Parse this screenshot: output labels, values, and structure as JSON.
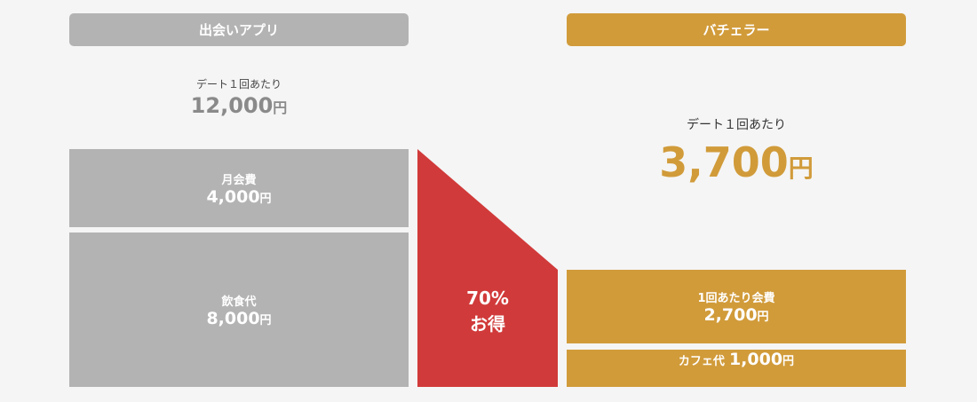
{
  "left": {
    "header": "出会いアプリ",
    "total": {
      "label": "デート１回あたり",
      "amount": "12,000",
      "unit": "円"
    },
    "items": [
      {
        "label": "月会費",
        "amount": "4,000",
        "unit": "円"
      },
      {
        "label": "飲食代",
        "amount": "8,000",
        "unit": "円"
      }
    ]
  },
  "saving": {
    "percent": "70%",
    "label": "お得"
  },
  "right": {
    "header": "バチェラー",
    "total": {
      "label": "デート１回あたり",
      "amount": "3,700",
      "unit": "円"
    },
    "items": [
      {
        "label": "1回あたり会費",
        "amount": "2,700",
        "unit": "円"
      },
      {
        "label": "カフェ代",
        "amount": "1,000",
        "unit": "円"
      }
    ]
  }
}
